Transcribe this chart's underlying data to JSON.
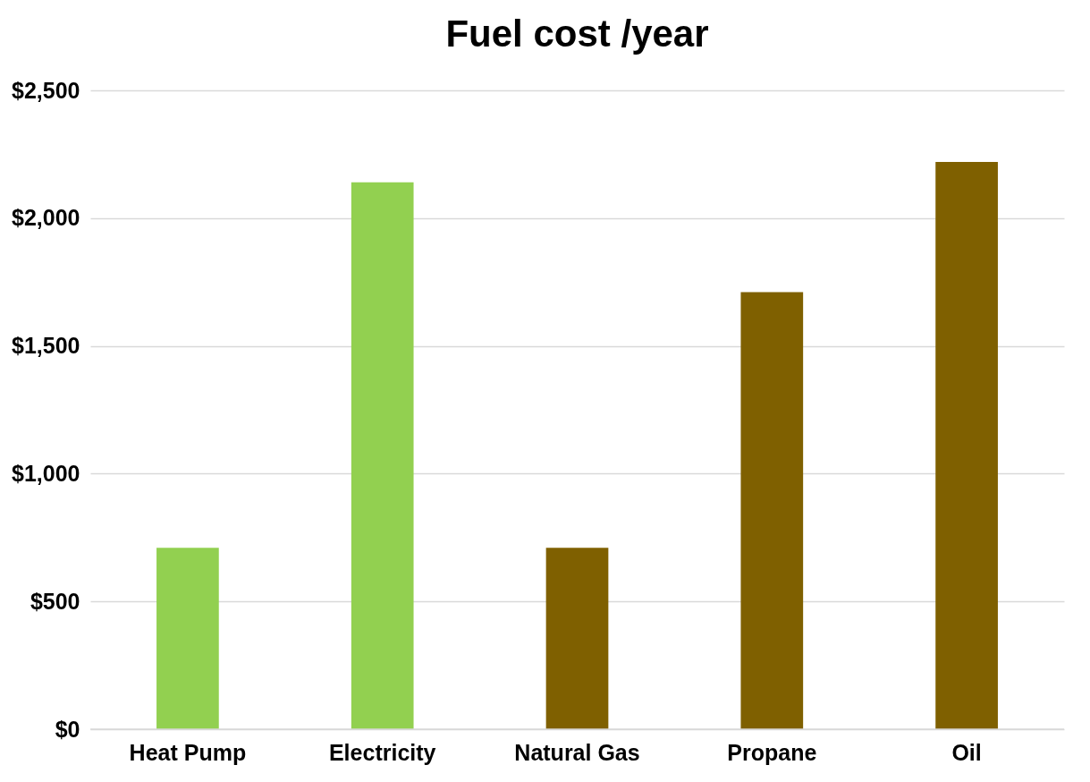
{
  "chart_data": {
    "type": "bar",
    "title": "Fuel cost /year",
    "categories": [
      "Heat Pump",
      "Electricity",
      "Natural Gas",
      "Propane",
      "Oil"
    ],
    "values": [
      710,
      2140,
      710,
      1710,
      2220
    ],
    "colors": [
      "#92d050",
      "#92d050",
      "#7f6000",
      "#7f6000",
      "#7f6000"
    ],
    "ylim": [
      0,
      2500
    ],
    "yticks": [
      {
        "value": 0,
        "label": "$0"
      },
      {
        "value": 500,
        "label": "$500"
      },
      {
        "value": 1000,
        "label": "$1,000"
      },
      {
        "value": 1500,
        "label": "$1,500"
      },
      {
        "value": 2000,
        "label": "$2,000"
      },
      {
        "value": 2500,
        "label": "$2,500"
      }
    ],
    "grid": "y"
  }
}
